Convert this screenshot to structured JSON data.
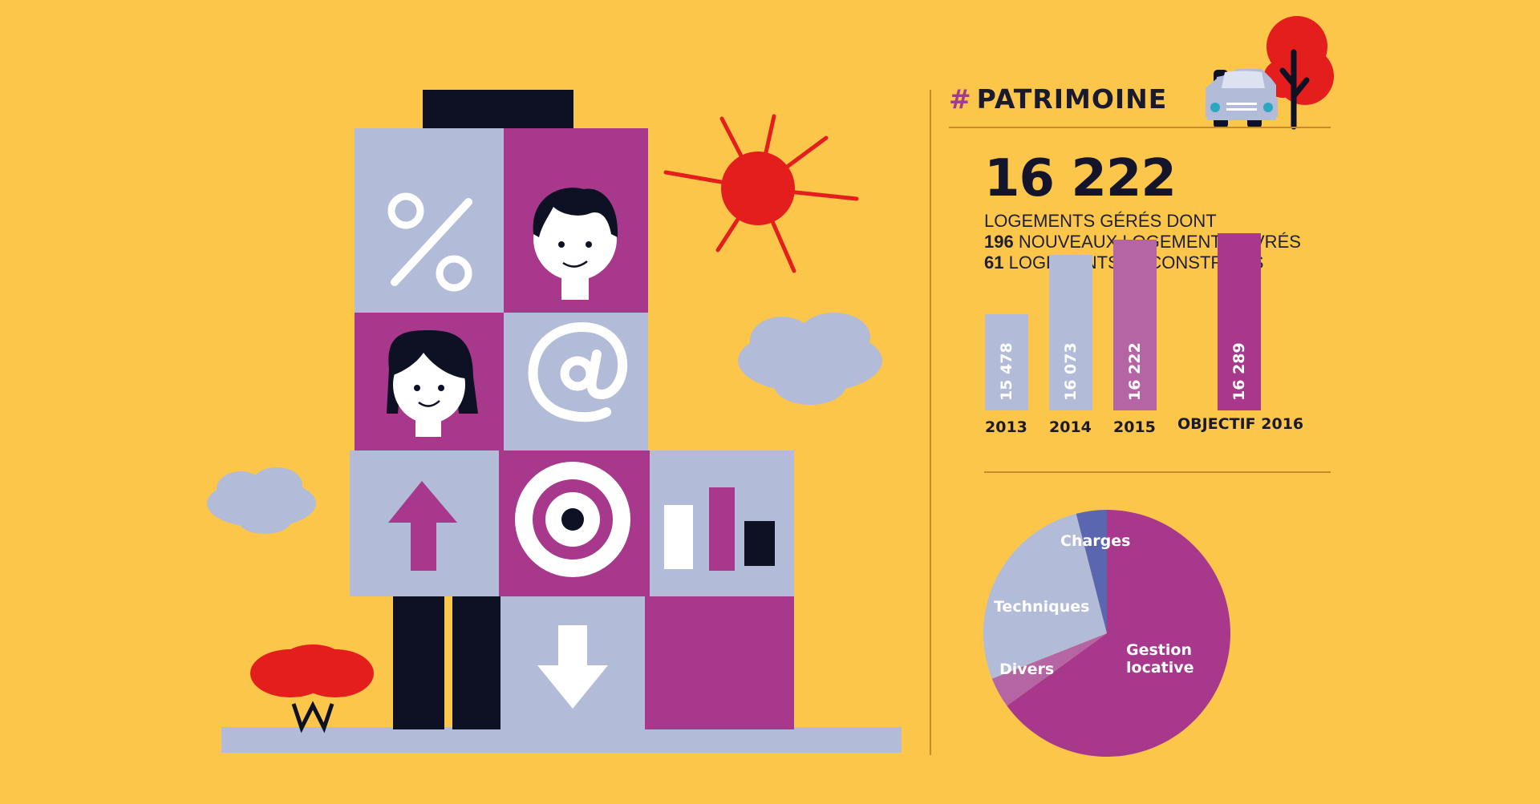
{
  "colors": {
    "background": "#fbc64a",
    "purple": "#a7388c",
    "lavender": "#b2bbd8",
    "light_purple": "#b565a3",
    "blue_slice": "#5a67b0",
    "red": "#e41d1d",
    "navy": "#0e1024"
  },
  "header": {
    "hash": "#",
    "title": "PATRIMOINE"
  },
  "stats": {
    "big_number": "16 222",
    "line1": "LOGEMENTS GÉRÉS DONT",
    "line2_num": "196",
    "line2_text": " NOUVEAUX LOGEMENTS LIVRÉS",
    "line3_num": "61",
    "line3_text": " LOGEMENTS DÉCONSTRUITS"
  },
  "icons": [
    "percent-icon",
    "boy-face-icon",
    "girl-face-icon",
    "at-sign-icon",
    "up-arrow-icon",
    "target-icon",
    "bar-chart-icon",
    "down-arrow-icon",
    "sun-icon",
    "cloud-icon",
    "car-icon",
    "tree-icon",
    "bush-icon"
  ],
  "chart_data": [
    {
      "type": "bar",
      "categories": [
        "2013",
        "2014",
        "2015",
        "OBJECTIF 2016"
      ],
      "value_labels": [
        "15 478",
        "16 073",
        "16 222",
        "16 289"
      ],
      "values": [
        15478,
        16073,
        16222,
        16289
      ],
      "colors": [
        "#b2bbd8",
        "#b2bbd8",
        "#b565a3",
        "#a7388c"
      ]
    },
    {
      "type": "pie",
      "labels": [
        "Gestion locative",
        "Divers",
        "Techniques",
        "Charges"
      ],
      "display_labels": [
        "Gestion\nlocative",
        "Divers",
        "Techniques",
        "Charges"
      ],
      "values": [
        65,
        4,
        27,
        4
      ],
      "colors": [
        "#a7388c",
        "#b565a3",
        "#b2bbd8",
        "#5a67b0"
      ]
    }
  ]
}
